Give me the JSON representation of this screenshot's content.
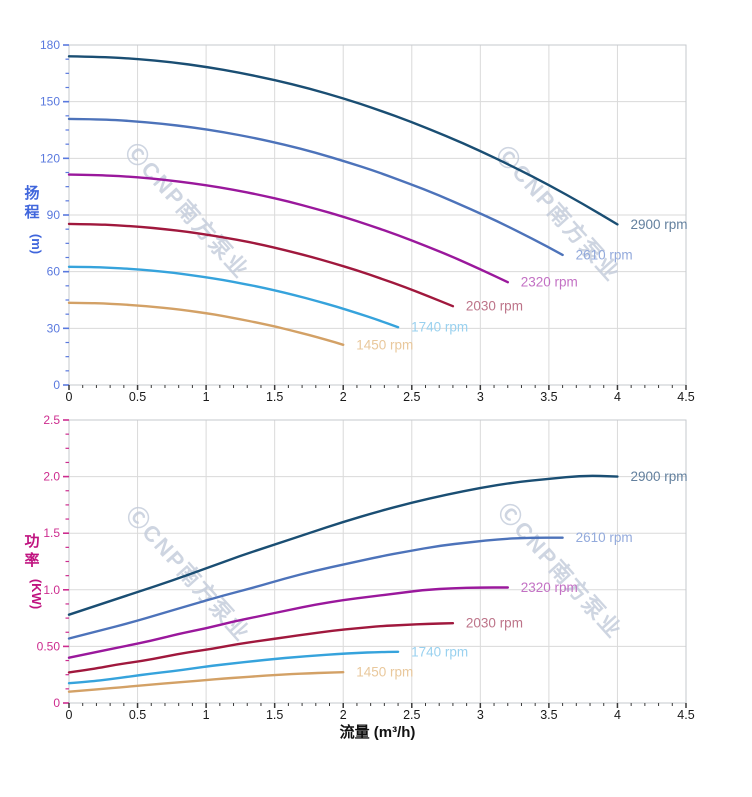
{
  "panel": {
    "watermark_text": "ⒸCNP南方泵业",
    "watermark_color": "#c3cbda"
  },
  "colors": {
    "grid": "#dadada",
    "plot_border": "#c6c9ce",
    "x_tick": "#3a3a3a",
    "x_tick_label": "#1a1a1a",
    "x_axis_title": "#111111",
    "head_axis": "#5a79de",
    "head_axis_title": "#4066dc",
    "power_axis": "#cd2d8f",
    "power_axis_title": "#c01480"
  },
  "chart_data": [
    {
      "type": "line",
      "title": "",
      "xlabel": "流量 (m³/h)",
      "ylabel": "扬程 (m)",
      "ylabel_stack": [
        "扬",
        "程"
      ],
      "ylabel_unit": "(m)",
      "xlim": [
        0,
        4.5
      ],
      "ylim": [
        0,
        180
      ],
      "grid": "major",
      "legend_position": "curve-end-labels",
      "x_tick_labels": [
        "0",
        "0.5",
        "1",
        "1.5",
        "2",
        "2.5",
        "3",
        "3.5",
        "4",
        "4.5"
      ],
      "y_tick_labels": [
        "0",
        "30",
        "60",
        "90",
        "120",
        "150",
        "180"
      ],
      "y_major_step": 30,
      "y_minor_step": 7.5,
      "series": [
        {
          "name": "2900 rpm",
          "color": "#1a4e73",
          "label_color": "#63809e",
          "x_step": 0.25,
          "values": [
            174,
            173.7,
            172.6,
            170.9,
            168.4,
            165.3,
            161.5,
            157,
            151.8,
            145.8,
            139.2,
            131.9,
            123.9,
            115.2,
            105.9,
            95.8,
            85
          ]
        },
        {
          "name": "2610 rpm",
          "color": "#4d73ba",
          "label_color": "#93aadc",
          "x_step": 0.225,
          "values": [
            140.9,
            140.7,
            139.8,
            138.4,
            136.4,
            133.9,
            130.8,
            127.2,
            123,
            118.1,
            112.8,
            106.8,
            100.4,
            93.3,
            85.8,
            77.6,
            68.9
          ]
        },
        {
          "name": "2320 rpm",
          "color": "#9a189c",
          "label_color": "#c371c4",
          "x_step": 0.2,
          "values": [
            111.4,
            111.1,
            110.5,
            109.4,
            107.8,
            105.8,
            103.4,
            100.5,
            97.2,
            93.3,
            89.1,
            84.4,
            79.3,
            73.7,
            67.8,
            61.3,
            54.4
          ]
        },
        {
          "name": "2030 rpm",
          "color": "#a0183d",
          "label_color": "#bd7489",
          "x_step": 0.175,
          "values": [
            85.3,
            85.1,
            84.6,
            83.7,
            82.5,
            81,
            79.1,
            76.9,
            74.4,
            71.4,
            68.2,
            64.6,
            60.7,
            56.4,
            51.9,
            46.9,
            41.7
          ]
        },
        {
          "name": "1740 rpm",
          "color": "#36a3dc",
          "label_color": "#99d1ef",
          "x_step": 0.15,
          "values": [
            62.6,
            62.5,
            62.1,
            61.5,
            60.6,
            59.5,
            58.1,
            56.5,
            54.6,
            52.5,
            50.1,
            47.5,
            44.6,
            41.5,
            38.1,
            34.5,
            30.6
          ]
        },
        {
          "name": "1450 rpm",
          "color": "#d3a166",
          "label_color": "#e9c89c",
          "x_step": 0.125,
          "values": [
            43.5,
            43.4,
            43.2,
            42.7,
            42.1,
            41.3,
            40.4,
            39.3,
            38,
            36.5,
            34.8,
            33,
            31,
            28.8,
            26.5,
            24,
            21.3
          ]
        }
      ]
    },
    {
      "type": "line",
      "title": "",
      "xlabel": "流量 (m³/h)",
      "ylabel": "功率 (KW)",
      "ylabel_stack": [
        "功",
        "率"
      ],
      "ylabel_unit": "(KW)",
      "xlim": [
        0,
        4.5
      ],
      "ylim": [
        0,
        2.5
      ],
      "grid": "major",
      "legend_position": "curve-end-labels",
      "x_tick_labels": [
        "0",
        "0.5",
        "1",
        "1.5",
        "2",
        "2.5",
        "3",
        "3.5",
        "4",
        "4.5"
      ],
      "y_tick_labels": [
        "0",
        "0.50",
        "1.0",
        "1.5",
        "2.0",
        "2.5"
      ],
      "y_major_step": 0.5,
      "y_minor_step": 0.125,
      "series": [
        {
          "name": "2900 rpm",
          "color": "#1a4e73",
          "label_color": "#63809e",
          "x_step": 0.25,
          "values": [
            0.78,
            0.88,
            0.98,
            1.08,
            1.19,
            1.3,
            1.4,
            1.5,
            1.6,
            1.69,
            1.77,
            1.84,
            1.9,
            1.95,
            1.98,
            2.01,
            2.0
          ]
        },
        {
          "name": "2610 rpm",
          "color": "#4d73ba",
          "label_color": "#93aadc",
          "x_step": 0.225,
          "values": [
            0.57,
            0.64,
            0.71,
            0.79,
            0.87,
            0.95,
            1.02,
            1.1,
            1.17,
            1.23,
            1.29,
            1.34,
            1.39,
            1.42,
            1.45,
            1.46,
            1.46
          ]
        },
        {
          "name": "2320 rpm",
          "color": "#9a189c",
          "label_color": "#c371c4",
          "x_step": 0.2,
          "values": [
            0.4,
            0.45,
            0.5,
            0.55,
            0.61,
            0.66,
            0.72,
            0.77,
            0.82,
            0.87,
            0.91,
            0.94,
            0.97,
            1.0,
            1.015,
            1.02,
            1.02
          ]
        },
        {
          "name": "2030 rpm",
          "color": "#a0183d",
          "label_color": "#bd7489",
          "x_step": 0.175,
          "values": [
            0.27,
            0.3,
            0.34,
            0.37,
            0.41,
            0.45,
            0.48,
            0.52,
            0.55,
            0.58,
            0.61,
            0.64,
            0.66,
            0.68,
            0.69,
            0.7,
            0.705
          ]
        },
        {
          "name": "1740 rpm",
          "color": "#36a3dc",
          "label_color": "#99d1ef",
          "x_step": 0.15,
          "values": [
            0.175,
            0.19,
            0.21,
            0.235,
            0.26,
            0.28,
            0.305,
            0.33,
            0.35,
            0.37,
            0.39,
            0.405,
            0.42,
            0.432,
            0.442,
            0.45,
            0.452
          ]
        },
        {
          "name": "1450 rpm",
          "color": "#d3a166",
          "label_color": "#e9c89c",
          "x_step": 0.125,
          "values": [
            0.1,
            0.112,
            0.125,
            0.138,
            0.152,
            0.165,
            0.178,
            0.19,
            0.203,
            0.215,
            0.226,
            0.237,
            0.247,
            0.255,
            0.262,
            0.268,
            0.272
          ]
        }
      ]
    }
  ]
}
